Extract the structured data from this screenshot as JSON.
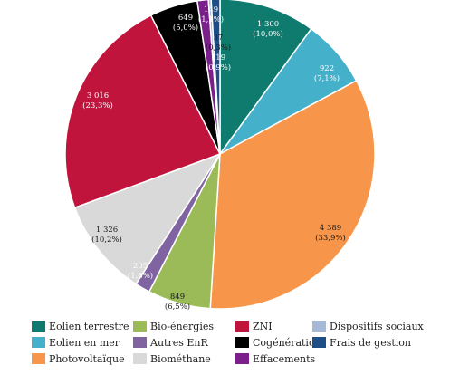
{
  "chart_data": {
    "type": "pie",
    "start_angle_deg": 0,
    "slices": [
      {
        "label": "Eolien terrestre",
        "value": 1300,
        "value_text": "1 300",
        "pct_text": "(10,0%)",
        "color": "#0f7b6f",
        "label_color": "#ffffff"
      },
      {
        "label": "Eolien en mer",
        "value": 922,
        "value_text": "922",
        "pct_text": "(7,1%)",
        "color": "#45b0c9",
        "label_color": "#ffffff"
      },
      {
        "label": "Photovoltaïque",
        "value": 4389,
        "value_text": "4 389",
        "pct_text": "(33,9%)",
        "color": "#f7964a",
        "label_color": "#1a1a1a"
      },
      {
        "label": "Bio-énergies",
        "value": 849,
        "value_text": "849",
        "pct_text": "(6,5%)",
        "color": "#9bbb59",
        "label_color": "#1a1a1a"
      },
      {
        "label": "Autres EnR",
        "value": 205,
        "value_text": "205",
        "pct_text": "(1,6%)",
        "color": "#8064a2",
        "label_color": "#ffffff"
      },
      {
        "label": "Biométhane",
        "value": 1326,
        "value_text": "1 326",
        "pct_text": "(10,2%)",
        "color": "#d9d9d9",
        "label_color": "#1a1a1a"
      },
      {
        "label": "ZNI",
        "value": 3016,
        "value_text": "3 016",
        "pct_text": "(23,3%)",
        "color": "#c0143c",
        "label_color": "#ffffff"
      },
      {
        "label": "Cogénération",
        "value": 649,
        "value_text": "649",
        "pct_text": "(5,0%)",
        "color": "#000000",
        "label_color": "#ffffff"
      },
      {
        "label": "Effacements",
        "value": 149,
        "value_text": "149",
        "pct_text": "(1,1%)",
        "color": "#7b1f8a",
        "label_color": "#ffffff"
      },
      {
        "label": "Dispositifs sociaux",
        "value": 37,
        "value_text": "37",
        "pct_text": "(0,3%)",
        "color": "#a5b8d6",
        "label_color": "#1a1a1a"
      },
      {
        "label": "Frais de gestion",
        "value": 119,
        "value_text": "119",
        "pct_text": "(0,9%)",
        "color": "#1f4e86",
        "label_color": "#ffffff"
      }
    ],
    "legend_position": "bottom",
    "legend": [
      [
        "Eolien terrestre",
        "Bio-énergies",
        "ZNI",
        "Dispositifs sociaux"
      ],
      [
        "Eolien en mer",
        "Autres EnR",
        "Cogénération",
        "Frais de gestion"
      ],
      [
        "Photovoltaïque",
        "Biométhane",
        "Effacements"
      ]
    ]
  }
}
